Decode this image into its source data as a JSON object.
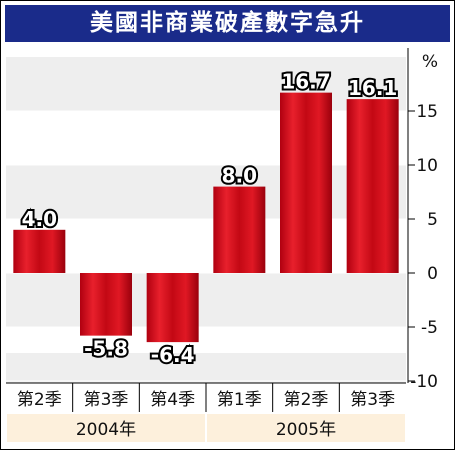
{
  "chart_data": {
    "type": "bar",
    "title": "美國非商業破產數字急升",
    "unit": "%",
    "categories": [
      "第2季",
      "第3季",
      "第4季",
      "第1季",
      "第2季",
      "第3季"
    ],
    "groups": [
      {
        "label": "2004年",
        "span": [
          0,
          2
        ]
      },
      {
        "label": "2005年",
        "span": [
          3,
          5
        ]
      }
    ],
    "series": [
      {
        "values": [
          4.0,
          -5.8,
          -6.4,
          8.0,
          16.7,
          16.1
        ]
      }
    ],
    "value_labels": [
      "4.0",
      "-5.8",
      "-6.4",
      "8.0",
      "16.7",
      "16.1"
    ],
    "yticks": [
      15,
      10,
      5,
      0,
      -5,
      -10
    ],
    "ytick_labels": [
      "15",
      "10",
      "5",
      "0",
      "-5",
      "-10"
    ],
    "ylim": [
      -10,
      20
    ],
    "grid": true,
    "colors": {
      "bar": "#d8101e",
      "band": "#eeeeee",
      "title_bg": "#1a2b8a",
      "label_bg": "#fdf0dc"
    }
  }
}
